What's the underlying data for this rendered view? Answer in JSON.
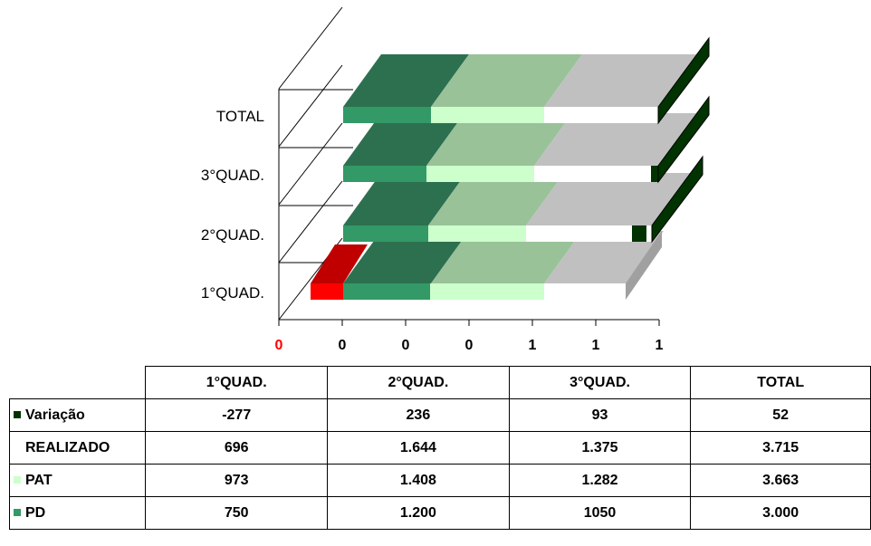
{
  "chart_data": {
    "type": "bar",
    "orientation": "horizontal-3d",
    "categories": [
      "1°QUAD.",
      "2°QUAD.",
      "3°QUAD.",
      "TOTAL"
    ],
    "x_tick_labels": [
      "0",
      "0",
      "0",
      "0",
      "1",
      "1",
      "1"
    ],
    "x_tick_colors": [
      "#ff0000",
      "#000000",
      "#000000",
      "#000000",
      "#000000",
      "#000000",
      "#000000"
    ],
    "series": [
      {
        "name": "Variação",
        "values": [
          -277,
          236,
          93,
          52
        ],
        "color": "#003300",
        "negative_color": "#c00000"
      },
      {
        "name": "REALIZADO",
        "values": [
          696,
          1644,
          1375,
          3715
        ],
        "color": "#ffffff"
      },
      {
        "name": "PAT",
        "values": [
          973,
          1408,
          1282,
          3663
        ],
        "color": "#ccffcc"
      },
      {
        "name": "PD",
        "values": [
          750,
          1200,
          1050,
          3000
        ],
        "color": "#339966"
      }
    ]
  },
  "table": {
    "headers": [
      "1°QUAD.",
      "2°QUAD.",
      "3°QUAD.",
      "TOTAL"
    ],
    "rows": [
      {
        "label": "Variação",
        "cells": [
          "-277",
          "236",
          "93",
          "52"
        ],
        "swatch": "#003300"
      },
      {
        "label": "REALIZADO",
        "cells": [
          "696",
          "1.644",
          "1.375",
          "3.715"
        ],
        "swatch": ""
      },
      {
        "label": "PAT",
        "cells": [
          "973",
          "1.408",
          "1.282",
          "3.663"
        ],
        "swatch": "#ccffcc"
      },
      {
        "label": "PD",
        "cells": [
          "750",
          "1.200",
          "1050",
          "3.000"
        ],
        "swatch": "#339966"
      }
    ]
  }
}
